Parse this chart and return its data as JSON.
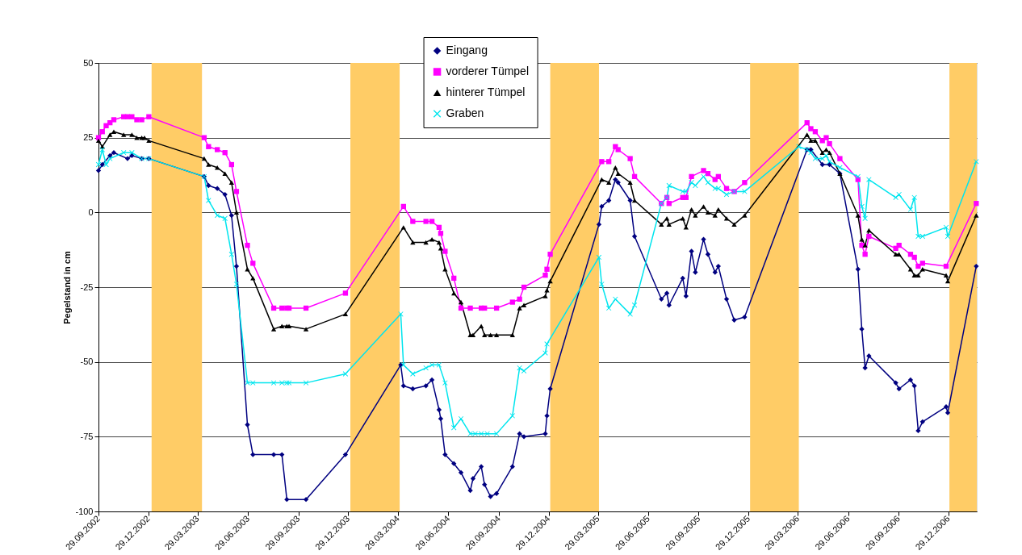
{
  "chart_data": {
    "type": "line",
    "ylabel": "Pegelstand in cm",
    "xlim": [
      "2002-09-29",
      "2007-02-19"
    ],
    "ylim": [
      -100,
      50
    ],
    "yticks": [
      -100,
      -75,
      -50,
      -25,
      0,
      25,
      50
    ],
    "xticks": [
      {
        "value": "2002-09-29",
        "label": "29.09.2002"
      },
      {
        "value": "2002-12-29",
        "label": "29.12.2002"
      },
      {
        "value": "2003-03-29",
        "label": "29.03.2003"
      },
      {
        "value": "2003-06-29",
        "label": "29.06.2003"
      },
      {
        "value": "2003-09-29",
        "label": "29.09.2003"
      },
      {
        "value": "2003-12-29",
        "label": "29.12.2003"
      },
      {
        "value": "2004-03-29",
        "label": "29.03.2004"
      },
      {
        "value": "2004-06-29",
        "label": "29.06.2004"
      },
      {
        "value": "2004-09-29",
        "label": "29.09.2004"
      },
      {
        "value": "2004-12-29",
        "label": "29.12.2004"
      },
      {
        "value": "2005-03-29",
        "label": "29.03.2005"
      },
      {
        "value": "2005-06-29",
        "label": "29.06.2005"
      },
      {
        "value": "2005-09-29",
        "label": "29.09.2005"
      },
      {
        "value": "2005-12-29",
        "label": "29.12.2005"
      },
      {
        "value": "2006-03-29",
        "label": "29.03.2006"
      },
      {
        "value": "2006-06-29",
        "label": "29.06.2006"
      },
      {
        "value": "2006-09-29",
        "label": "29.09.2006"
      },
      {
        "value": "2006-12-29",
        "label": "29.12.2006"
      }
    ],
    "grid": "y",
    "legend": "top",
    "bands": [
      {
        "axis": "x",
        "from": "2003-01-04",
        "to": "2003-04-06",
        "color": "#ffcc66"
      },
      {
        "axis": "x",
        "from": "2004-01-02",
        "to": "2004-04-01",
        "color": "#ffcc66"
      },
      {
        "axis": "x",
        "from": "2005-01-01",
        "to": "2005-03-31",
        "color": "#ffcc66"
      },
      {
        "axis": "x",
        "from": "2006-01-01",
        "to": "2006-03-31",
        "color": "#ffcc66"
      },
      {
        "axis": "x",
        "from": "2006-12-31",
        "to": "2007-02-19",
        "color": "#ffcc66"
      }
    ],
    "series": [
      {
        "name": "Eingang",
        "color": "#000080",
        "marker": "diamond",
        "x": [
          "2002-09-29",
          "2002-10-06",
          "2002-10-20",
          "2002-10-27",
          "2002-11-21",
          "2002-11-29",
          "2002-12-17",
          "2002-12-30",
          "2003-04-10",
          "2003-04-18",
          "2003-05-04",
          "2003-05-18",
          "2003-05-30",
          "2003-06-08",
          "2003-06-28",
          "2003-07-08",
          "2003-08-15",
          "2003-08-30",
          "2003-09-08",
          "2003-10-13",
          "2003-12-24",
          "2004-04-03",
          "2004-04-08",
          "2004-04-25",
          "2004-05-19",
          "2004-05-30",
          "2004-06-12",
          "2004-06-15",
          "2004-06-23",
          "2004-07-09",
          "2004-07-22",
          "2004-08-08",
          "2004-08-13",
          "2004-08-28",
          "2004-09-03",
          "2004-09-14",
          "2004-09-25",
          "2004-10-24",
          "2004-11-06",
          "2004-11-14",
          "2004-12-23",
          "2004-12-26",
          "2005-01-01",
          "2005-03-31",
          "2005-04-05",
          "2005-04-18",
          "2005-04-30",
          "2005-05-05",
          "2005-05-27",
          "2005-06-04",
          "2005-07-23",
          "2005-08-02",
          "2005-08-06",
          "2005-08-31",
          "2005-09-06",
          "2005-09-16",
          "2005-09-23",
          "2005-10-08",
          "2005-10-16",
          "2005-10-29",
          "2005-11-04",
          "2005-11-19",
          "2005-12-03",
          "2005-12-22",
          "2006-04-15",
          "2006-04-22",
          "2006-05-13",
          "2006-05-26",
          "2006-06-14",
          "2006-07-17",
          "2006-07-24",
          "2006-07-30",
          "2006-08-06",
          "2006-09-24",
          "2006-09-30",
          "2006-10-21",
          "2006-10-28",
          "2006-11-04",
          "2006-11-12",
          "2006-12-25",
          "2006-12-28",
          "2007-02-18"
        ],
        "values": [
          14,
          16,
          19,
          20,
          18,
          19,
          18,
          18,
          12,
          9,
          8,
          6,
          -1,
          -18,
          -71,
          -81,
          -81,
          -81,
          -96,
          -96,
          -81,
          -51,
          -58,
          -59,
          -58,
          -56,
          -66,
          -69,
          -81,
          -84,
          -87,
          -93,
          -89,
          -85,
          -91,
          -95,
          -94,
          -85,
          -74,
          -75,
          -74,
          -68,
          -59,
          -4,
          2,
          4,
          11,
          10,
          4,
          -8,
          -29,
          -27,
          -31,
          -22,
          -28,
          -13,
          -20,
          -9,
          -14,
          -20,
          -18,
          -29,
          -36,
          -35,
          21,
          21,
          16,
          16,
          13,
          -19,
          -39,
          -52,
          -48,
          -57,
          -59,
          -56,
          -58,
          -73,
          -70,
          -65,
          -67,
          -18
        ]
      },
      {
        "name": "vorderer Tümpel",
        "color": "#ff00ff",
        "marker": "square",
        "x": [
          "2002-09-29",
          "2002-10-06",
          "2002-10-13",
          "2002-10-20",
          "2002-10-27",
          "2002-11-14",
          "2002-11-21",
          "2002-11-29",
          "2002-12-08",
          "2002-12-17",
          "2002-12-30",
          "2003-04-10",
          "2003-04-18",
          "2003-05-04",
          "2003-05-18",
          "2003-05-30",
          "2003-06-08",
          "2003-06-28",
          "2003-07-08",
          "2003-08-15",
          "2003-08-30",
          "2003-09-08",
          "2003-09-12",
          "2003-10-13",
          "2003-12-24",
          "2004-04-08",
          "2004-04-25",
          "2004-05-19",
          "2004-05-30",
          "2004-06-12",
          "2004-06-15",
          "2004-06-23",
          "2004-07-09",
          "2004-07-22",
          "2004-08-08",
          "2004-08-28",
          "2004-09-03",
          "2004-09-25",
          "2004-10-24",
          "2004-11-06",
          "2004-11-14",
          "2004-12-23",
          "2004-12-26",
          "2005-01-01",
          "2005-04-05",
          "2005-04-18",
          "2005-04-30",
          "2005-05-05",
          "2005-05-27",
          "2005-06-04",
          "2005-07-23",
          "2005-08-02",
          "2005-08-06",
          "2005-08-31",
          "2005-09-06",
          "2005-09-16",
          "2005-10-08",
          "2005-10-16",
          "2005-10-29",
          "2005-11-04",
          "2005-11-19",
          "2005-12-03",
          "2005-12-22",
          "2006-04-15",
          "2006-04-22",
          "2006-04-30",
          "2006-05-13",
          "2006-05-20",
          "2006-05-26",
          "2006-06-14",
          "2006-07-17",
          "2006-07-24",
          "2006-07-30",
          "2006-08-06",
          "2006-09-24",
          "2006-09-30",
          "2006-10-21",
          "2006-10-28",
          "2006-11-04",
          "2006-11-12",
          "2006-12-25",
          "2007-02-18"
        ],
        "values": [
          25,
          27,
          29,
          30,
          31,
          32,
          32,
          32,
          31,
          31,
          32,
          25,
          22,
          21,
          20,
          16,
          7,
          -11,
          -17,
          -32,
          -32,
          -32,
          -32,
          -32,
          -27,
          2,
          -3,
          -3,
          -3,
          -5,
          -7,
          -13,
          -22,
          -32,
          -32,
          -32,
          -32,
          -32,
          -30,
          -29,
          -25,
          -21,
          -19,
          -14,
          17,
          17,
          22,
          21,
          18,
          12,
          3,
          5,
          3,
          5,
          5,
          12,
          14,
          13,
          11,
          12,
          8,
          7,
          10,
          30,
          28,
          27,
          24,
          25,
          23,
          18,
          11,
          -11,
          -14,
          -8,
          -12,
          -11,
          -14,
          -15,
          -18,
          -17,
          -18,
          3
        ]
      },
      {
        "name": "hinterer Tümpel",
        "color": "#000000",
        "marker": "triangle",
        "x": [
          "2002-09-29",
          "2002-10-06",
          "2002-10-20",
          "2002-10-27",
          "2002-11-14",
          "2002-11-29",
          "2002-12-08",
          "2002-12-17",
          "2002-12-22",
          "2002-12-30",
          "2003-04-10",
          "2003-04-18",
          "2003-05-04",
          "2003-05-18",
          "2003-05-30",
          "2003-06-08",
          "2003-06-28",
          "2003-07-08",
          "2003-08-15",
          "2003-08-30",
          "2003-09-08",
          "2003-09-12",
          "2003-10-13",
          "2003-12-24",
          "2004-04-08",
          "2004-04-25",
          "2004-05-19",
          "2004-05-30",
          "2004-06-12",
          "2004-06-15",
          "2004-06-23",
          "2004-07-09",
          "2004-07-22",
          "2004-08-08",
          "2004-08-13",
          "2004-08-28",
          "2004-09-03",
          "2004-09-14",
          "2004-09-25",
          "2004-10-24",
          "2004-11-06",
          "2004-11-14",
          "2004-12-23",
          "2004-12-26",
          "2005-01-01",
          "2005-04-05",
          "2005-04-18",
          "2005-04-30",
          "2005-05-05",
          "2005-05-27",
          "2005-06-04",
          "2005-07-23",
          "2005-08-02",
          "2005-08-06",
          "2005-08-31",
          "2005-09-06",
          "2005-09-16",
          "2005-09-23",
          "2005-10-08",
          "2005-10-16",
          "2005-10-29",
          "2005-11-04",
          "2005-11-19",
          "2005-12-03",
          "2005-12-22",
          "2006-04-15",
          "2006-04-22",
          "2006-04-30",
          "2006-05-13",
          "2006-05-20",
          "2006-05-26",
          "2006-06-14",
          "2006-07-17",
          "2006-07-24",
          "2006-07-30",
          "2006-08-06",
          "2006-09-24",
          "2006-09-30",
          "2006-10-21",
          "2006-10-28",
          "2006-11-04",
          "2006-11-12",
          "2006-12-25",
          "2006-12-28",
          "2007-02-18"
        ],
        "values": [
          24,
          22,
          26,
          27,
          26,
          26,
          25,
          25,
          25,
          24,
          18,
          16,
          15,
          13,
          10,
          0,
          -19,
          -22,
          -39,
          -38,
          -38,
          -38,
          -39,
          -34,
          -5,
          -10,
          -10,
          -9,
          -10,
          -12,
          -19,
          -27,
          -30,
          -41,
          -41,
          -38,
          -41,
          -41,
          -41,
          -41,
          -32,
          -31,
          -28,
          -26,
          -23,
          11,
          10,
          15,
          13,
          10,
          4,
          -4,
          -2,
          -4,
          -2,
          -5,
          1,
          -1,
          2,
          0,
          -1,
          1,
          -2,
          -4,
          -1,
          26,
          24,
          24,
          20,
          21,
          20,
          13,
          -1,
          -9,
          -11,
          -6,
          -14,
          -14,
          -19,
          -21,
          -21,
          -19,
          -21,
          -23,
          -1
        ]
      },
      {
        "name": "Graben",
        "color": "#00e5ee",
        "marker": "cross",
        "x": [
          "2002-09-29",
          "2002-10-06",
          "2002-10-13",
          "2002-10-20",
          "2002-11-14",
          "2002-11-29",
          "2002-12-17",
          "2002-12-30",
          "2003-04-10",
          "2003-04-18",
          "2003-05-04",
          "2003-05-18",
          "2003-05-30",
          "2003-06-08",
          "2003-06-28",
          "2003-07-08",
          "2003-08-15",
          "2003-08-30",
          "2003-09-08",
          "2003-09-12",
          "2003-10-13",
          "2003-12-24",
          "2004-04-03",
          "2004-04-08",
          "2004-04-25",
          "2004-05-19",
          "2004-05-30",
          "2004-06-12",
          "2004-06-23",
          "2004-07-09",
          "2004-07-22",
          "2004-08-08",
          "2004-08-17",
          "2004-08-28",
          "2004-09-08",
          "2004-09-25",
          "2004-10-24",
          "2004-11-06",
          "2004-11-14",
          "2004-12-23",
          "2004-12-26",
          "2005-03-31",
          "2005-04-05",
          "2005-04-18",
          "2005-04-30",
          "2005-05-27",
          "2005-06-04",
          "2005-07-23",
          "2005-08-02",
          "2005-08-06",
          "2005-08-31",
          "2005-09-06",
          "2005-09-16",
          "2005-09-23",
          "2005-10-08",
          "2005-10-16",
          "2005-10-29",
          "2005-11-04",
          "2005-11-19",
          "2005-12-03",
          "2005-12-22",
          "2006-03-31",
          "2006-04-15",
          "2006-04-22",
          "2006-04-30",
          "2006-05-13",
          "2006-05-20",
          "2006-05-26",
          "2006-06-14",
          "2006-07-17",
          "2006-07-24",
          "2006-07-30",
          "2006-08-06",
          "2006-09-24",
          "2006-09-30",
          "2006-10-21",
          "2006-10-28",
          "2006-11-04",
          "2006-11-12",
          "2006-12-25",
          "2006-12-28",
          "2007-02-18"
        ],
        "values": [
          16,
          21,
          16,
          18,
          20,
          20,
          18,
          18,
          12,
          4,
          -1,
          -2,
          -14,
          -24,
          -57,
          -57,
          -57,
          -57,
          -57,
          -57,
          -57,
          -54,
          -34,
          -51,
          -54,
          -52,
          -51,
          -51,
          -57,
          -72,
          -69,
          -74,
          -74,
          -74,
          -74,
          -74,
          -68,
          -52,
          -53,
          -47,
          -44,
          -15,
          -24,
          -32,
          -29,
          -34,
          -31,
          3,
          5,
          9,
          7,
          7,
          10,
          9,
          12,
          10,
          8,
          8,
          6,
          7,
          7,
          22,
          21,
          20,
          18,
          18,
          19,
          17,
          15,
          12,
          2,
          -2,
          11,
          5,
          6,
          1,
          5,
          -8,
          -8,
          -5,
          -8,
          17
        ]
      }
    ]
  }
}
